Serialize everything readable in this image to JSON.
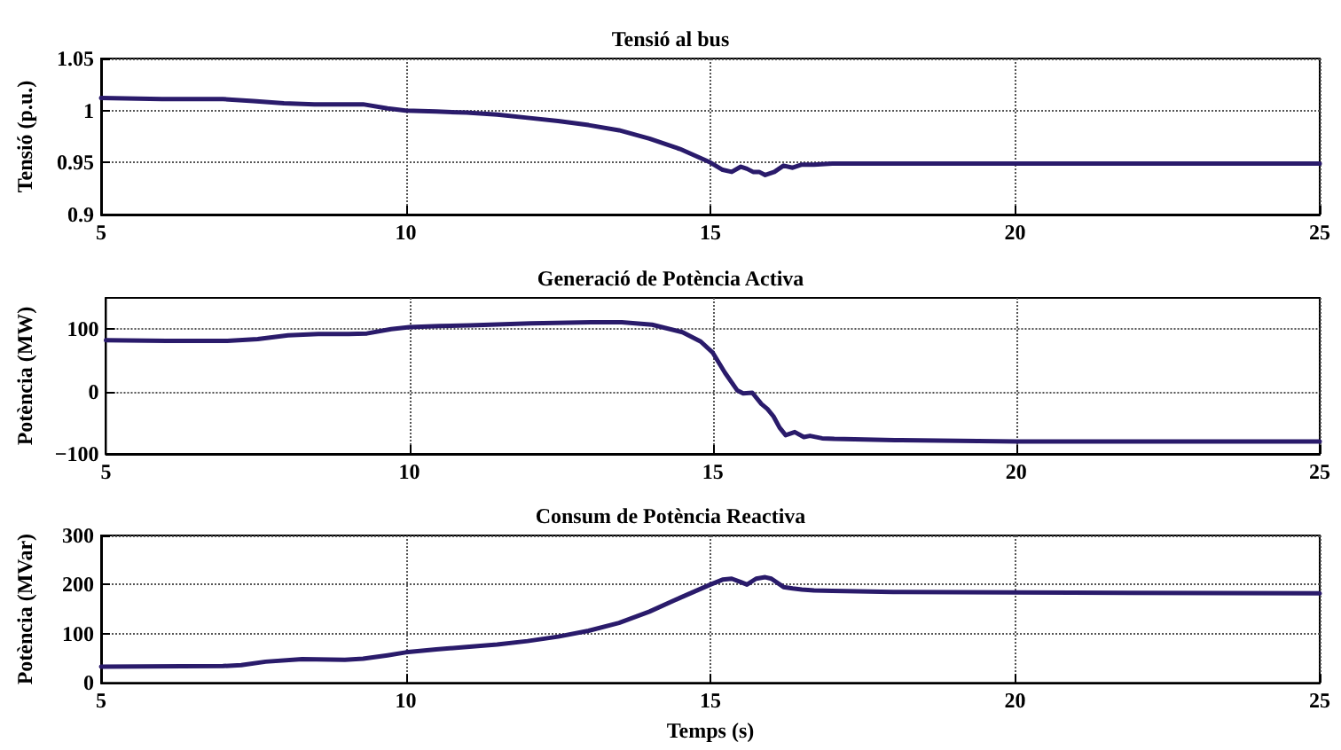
{
  "chart_data": [
    {
      "type": "line",
      "title": "Tensió al bus",
      "ylabel": "Tensió (p.u.)",
      "x": [
        5,
        6,
        7,
        7.5,
        8,
        8.5,
        9,
        9.3,
        9.7,
        10,
        10.5,
        11,
        11.5,
        12,
        12.5,
        13,
        13.5,
        14,
        14.5,
        15,
        15.2,
        15.35,
        15.5,
        15.6,
        15.7,
        15.8,
        15.9,
        16.05,
        16.2,
        16.35,
        16.5,
        16.7,
        17,
        18,
        20,
        25
      ],
      "series": [
        {
          "color": "#2a1b6b",
          "values": [
            1.012,
            1.011,
            1.011,
            1.009,
            1.007,
            1.006,
            1.006,
            1.006,
            1.002,
            1.0,
            0.999,
            0.998,
            0.996,
            0.993,
            0.99,
            0.986,
            0.981,
            0.973,
            0.963,
            0.95,
            0.943,
            0.941,
            0.946,
            0.944,
            0.941,
            0.941,
            0.938,
            0.941,
            0.947,
            0.945,
            0.948,
            0.948,
            0.949,
            0.949,
            0.949,
            0.949
          ]
        }
      ],
      "xlim": [
        5,
        25
      ],
      "xticks": [
        5,
        10,
        15,
        20,
        25
      ],
      "ylim": [
        0.9,
        1.05
      ],
      "yticks": [
        0.9,
        0.95,
        1,
        1.05
      ],
      "grid": true,
      "line_style": "solid"
    },
    {
      "type": "line",
      "title": "Generació de Potència Activa",
      "ylabel": "Potència (MW)",
      "x": [
        5,
        6,
        7,
        7.5,
        8,
        8.5,
        9,
        9.3,
        9.7,
        10,
        10.5,
        11,
        12,
        13,
        13.5,
        14,
        14.5,
        14.8,
        15,
        15.2,
        15.4,
        15.5,
        15.65,
        15.8,
        15.9,
        16,
        16.1,
        16.2,
        16.35,
        16.5,
        16.6,
        16.8,
        17,
        18,
        20,
        25
      ],
      "series": [
        {
          "color": "#2a1b6b",
          "values": [
            82,
            81,
            81,
            84,
            90,
            92,
            92,
            93,
            100,
            103,
            105,
            106,
            109,
            111,
            111,
            107,
            95,
            80,
            62,
            30,
            2,
            -3,
            -2,
            -20,
            -28,
            -40,
            -58,
            -70,
            -65,
            -73,
            -71,
            -75,
            -76,
            -78,
            -80,
            -80
          ]
        }
      ],
      "xlim": [
        5,
        25
      ],
      "xticks": [
        5,
        10,
        15,
        20,
        25
      ],
      "ylim": [
        -100,
        150
      ],
      "yticks": [
        -100,
        0,
        100
      ],
      "grid": true,
      "line_style": "solid"
    },
    {
      "type": "line",
      "title": "Consum de Potència Reactiva",
      "xlabel": "Temps (s)",
      "ylabel": "Potència (MVar)",
      "x": [
        5,
        7,
        7.3,
        7.7,
        8.3,
        9,
        9.3,
        9.7,
        10,
        10.5,
        11,
        11.5,
        12,
        12.5,
        13,
        13.5,
        14,
        14.5,
        15,
        15.2,
        15.35,
        15.5,
        15.6,
        15.75,
        15.9,
        16,
        16.2,
        16.35,
        16.5,
        16.7,
        17,
        18,
        20,
        25
      ],
      "series": [
        {
          "color": "#2a1b6b",
          "values": [
            33,
            34,
            36,
            43,
            48,
            47,
            49,
            56,
            62,
            68,
            73,
            78,
            85,
            94,
            106,
            122,
            145,
            173,
            200,
            210,
            212,
            205,
            200,
            212,
            215,
            212,
            195,
            192,
            190,
            188,
            187,
            185,
            184,
            182
          ]
        }
      ],
      "xlim": [
        5,
        25
      ],
      "xticks": [
        5,
        10,
        15,
        20,
        25
      ],
      "ylim": [
        0,
        300
      ],
      "yticks": [
        0,
        100,
        200,
        300
      ],
      "grid": true,
      "line_style": "solid"
    }
  ]
}
